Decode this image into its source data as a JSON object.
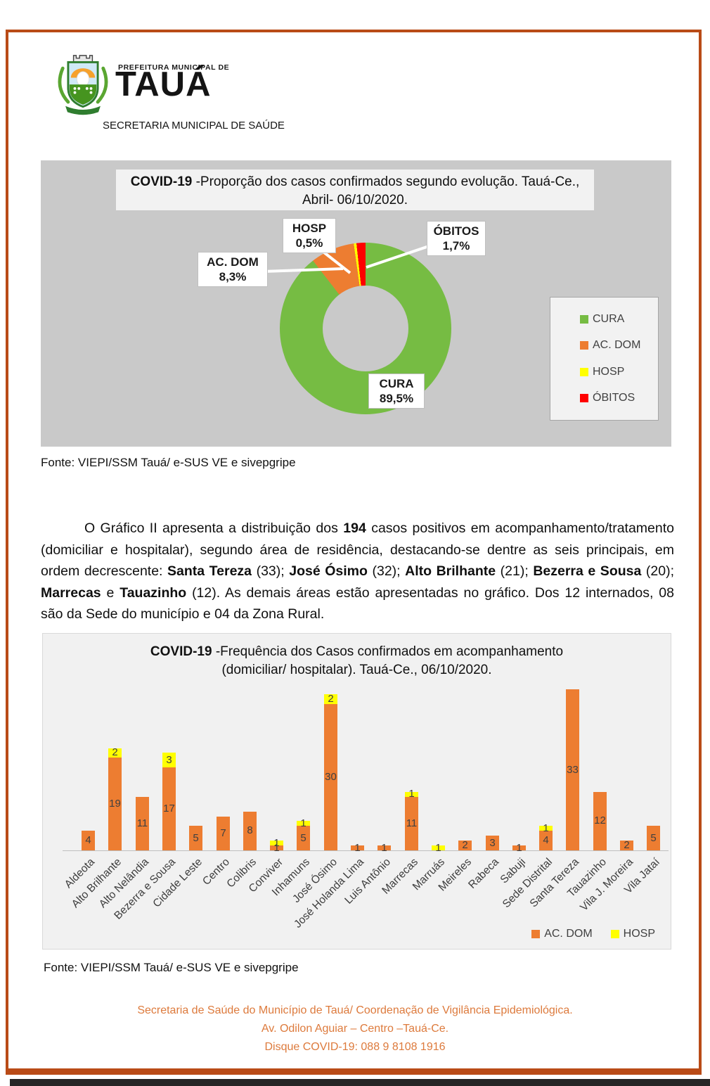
{
  "page": {
    "frame_color": "#B94B17",
    "bottom_shadow_color": "#262626"
  },
  "header": {
    "logo_small_text": "PREFEITURA MUNICIPAL DE",
    "logo_big_text": "TAUÁ",
    "subtitle": "SECRETARIA MUNICIPAL DE SAÚDE"
  },
  "paragraph": {
    "segments": [
      {
        "t": "O Gráfico II apresenta a distribuição dos ",
        "b": false
      },
      {
        "t": "194",
        "b": true
      },
      {
        "t": " casos positivos em acompanhamento/tratamento (domiciliar e hospitalar), segundo área de residência, destacando-se dentre as seis principais, em ordem decrescente: ",
        "b": false
      },
      {
        "t": "Santa Tereza",
        "b": true
      },
      {
        "t": " (33); ",
        "b": false
      },
      {
        "t": "José Ósimo",
        "b": true
      },
      {
        "t": " (32); ",
        "b": false
      },
      {
        "t": "Alto Brilhante",
        "b": true
      },
      {
        "t": " (21); ",
        "b": false
      },
      {
        "t": "Bezerra e Sousa",
        "b": true
      },
      {
        "t": " (20); ",
        "b": false
      },
      {
        "t": "Marrecas",
        "b": true
      },
      {
        "t": " e ",
        "b": false
      },
      {
        "t": "Tauazinho",
        "b": true
      },
      {
        "t": " (12). As demais áreas estão apresentadas no gráfico. Dos 12 internados, 08 são da Sede do município e 04 da Zona Rural.",
        "b": false
      }
    ]
  },
  "footer": {
    "color": "#DD7A3C",
    "lines": [
      "Secretaria de Saúde do Município de Tauá/ Coordenação de Vigilância Epidemiológica.",
      "Av. Odilon Aguiar – Centro –Tauá-Ce.",
      "Disque COVID-19: 088 9 8108 1916"
    ]
  },
  "chart_data": [
    {
      "type": "pie",
      "donut": true,
      "title_bold": "COVID-19",
      "title_rest": " -Proporção dos casos confirmados segundo evolução. Tauá-Ce.,",
      "title_line2": "Abril- 06/10/2020.",
      "background": "#C9C9C9",
      "title_box_background": "#F2F2F2",
      "slices": [
        {
          "label": "CURA",
          "pct": 89.5,
          "value_display": "89,5%",
          "color": "#76BC43"
        },
        {
          "label": "AC. DOM",
          "pct": 8.3,
          "value_display": "8,3%",
          "color": "#ED7D31"
        },
        {
          "label": "HOSP",
          "pct": 0.5,
          "value_display": "0,5%",
          "color": "#FFFF00"
        },
        {
          "label": "ÓBITOS",
          "pct": 1.7,
          "value_display": "1,7%",
          "color": "#FF0000"
        }
      ],
      "legend": [
        "CURA",
        "AC. DOM",
        "HOSP",
        "ÓBITOS"
      ],
      "legend_position": "right",
      "source": "Fonte: VIEPI/SSM Tauá/ e-SUS VE e sivepgripe"
    },
    {
      "type": "bar",
      "stacked": true,
      "title_bold": "COVID-19",
      "title_rest": " -Frequência dos Casos confirmados em acompanhamento",
      "title_line2": "(domiciliar/ hospitalar). Tauá-Ce., 06/10/2020.",
      "categories": [
        "Aldeota",
        "Alto Brilhante",
        "Alto Nelândia",
        "Bezerra e Sousa",
        "Cidade Leste",
        "Centro",
        "Colibris",
        "Conviver",
        "Inhamuns",
        "José Ósimo",
        "José Holanda Lima",
        "Luis Antônio",
        "Marrecas",
        "Marruás",
        "Meireles",
        "Rabeca",
        "Sabuji",
        "Sede Distrital",
        "Santa Tereza",
        "Tauazinho",
        "Vila J. Moreira",
        "Vila Jataí"
      ],
      "series": [
        {
          "name": "AC. DOM",
          "color": "#ED7D31",
          "values": [
            4,
            19,
            11,
            17,
            5,
            7,
            8,
            1,
            5,
            30,
            1,
            1,
            11,
            0,
            2,
            3,
            1,
            4,
            33,
            12,
            2,
            5
          ]
        },
        {
          "name": "HOSP",
          "color": "#FFFF00",
          "values": [
            0,
            2,
            0,
            3,
            0,
            0,
            0,
            1,
            1,
            2,
            0,
            0,
            1,
            1,
            0,
            0,
            0,
            1,
            0,
            0,
            0,
            0
          ]
        }
      ],
      "ylim": [
        0,
        35
      ],
      "gridlines": false,
      "legend_position": "bottom-right",
      "source": "Fonte: VIEPI/SSM Tauá/ e-SUS VE e sivepgripe"
    }
  ]
}
